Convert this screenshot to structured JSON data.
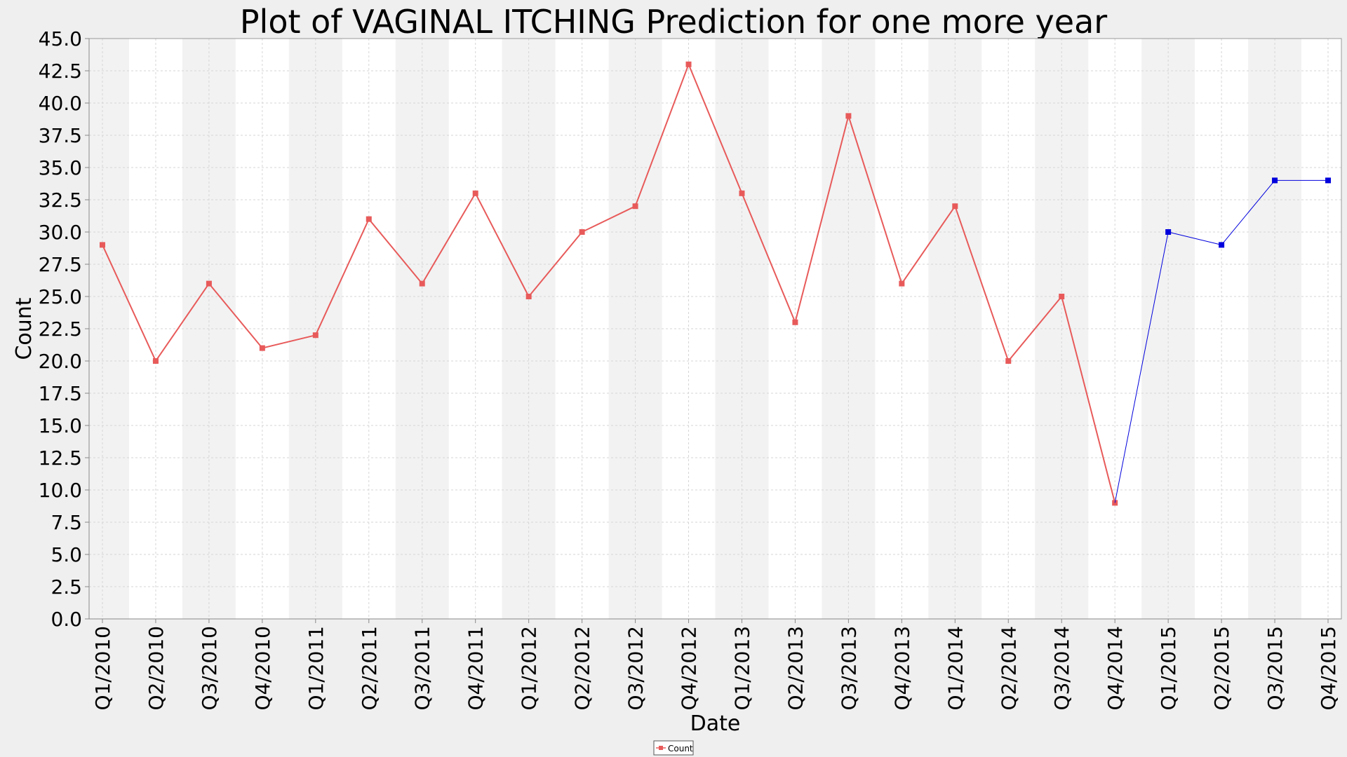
{
  "chart_data": {
    "type": "line",
    "title": "Plot of VAGINAL ITCHING Prediction for one more year",
    "xlabel": "Date",
    "ylabel": "Count",
    "ylim": [
      0,
      45
    ],
    "ytick_step": 2.5,
    "grid": true,
    "legend_position": "bottom-center",
    "categories": [
      "Q1/2010",
      "Q2/2010",
      "Q3/2010",
      "Q4/2010",
      "Q1/2011",
      "Q2/2011",
      "Q3/2011",
      "Q4/2011",
      "Q1/2012",
      "Q2/2012",
      "Q3/2012",
      "Q4/2012",
      "Q1/2013",
      "Q2/2013",
      "Q3/2013",
      "Q4/2013",
      "Q1/2014",
      "Q2/2014",
      "Q3/2014",
      "Q4/2014",
      "Q1/2015",
      "Q2/2015",
      "Q3/2015",
      "Q4/2015"
    ],
    "series": [
      {
        "name": "Count",
        "color": "#e85a5a",
        "values": [
          29,
          20,
          26,
          21,
          22,
          31,
          26,
          33,
          25,
          30,
          32,
          43,
          33,
          23,
          39,
          26,
          32,
          20,
          25,
          9,
          null,
          null,
          null,
          null
        ]
      },
      {
        "color": "#0000dd",
        "values": [
          null,
          null,
          null,
          null,
          null,
          null,
          null,
          null,
          null,
          null,
          null,
          null,
          null,
          null,
          null,
          null,
          null,
          null,
          null,
          9,
          30,
          29,
          34,
          34
        ]
      }
    ],
    "colors": {
      "plot_background": "#ffffff",
      "band_shade": "#f2f2f2",
      "grid": "#d6d6d6",
      "page_background": "#efefef"
    }
  }
}
